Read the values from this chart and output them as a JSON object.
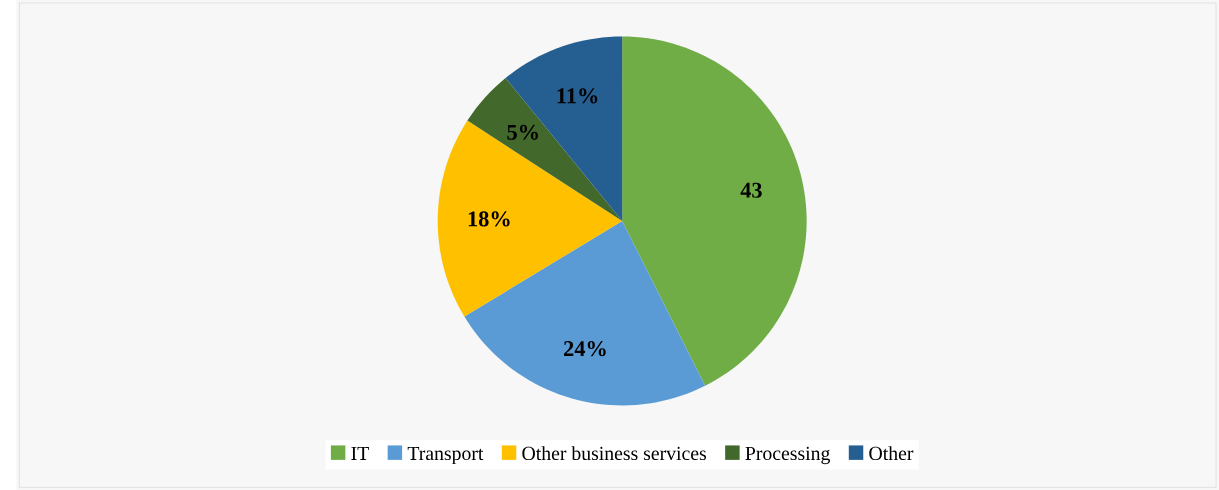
{
  "chart_data": {
    "type": "pie",
    "legend": "bottom",
    "categories": [
      "IT",
      "Transport",
      "Other business services",
      "Processing",
      "Other"
    ],
    "values": [
      43,
      24,
      18,
      5,
      11
    ],
    "value_labels": [
      "43",
      "24%",
      "18%",
      "5%",
      "11%"
    ],
    "colors": [
      "#70ad47",
      "#5b9bd5",
      "#ffc000",
      "#43682b",
      "#255e91"
    ]
  }
}
